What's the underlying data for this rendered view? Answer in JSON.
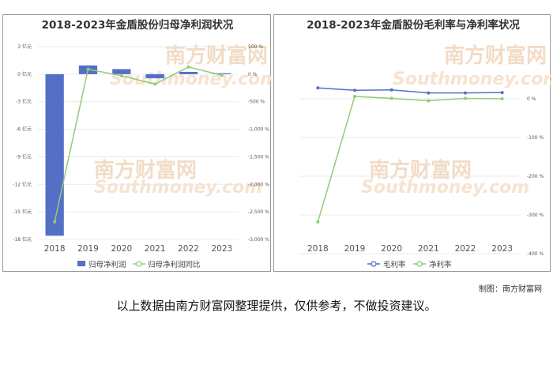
{
  "watermark": {
    "cn": "南方财富网",
    "en": "Southmoney.com"
  },
  "credit": "制图：南方财富网",
  "disclaimer": "以上数据由南方财富网整理提供，仅供参考，不做投资建议。",
  "chart_data": [
    {
      "type": "bar+line",
      "title": "2018-2023年金盾股份归母净利润状况",
      "categories": [
        "2018",
        "2019",
        "2020",
        "2021",
        "2022",
        "2023"
      ],
      "left_axis": {
        "unit": "亿元",
        "ylim": [
          -18,
          3
        ],
        "ticks": [
          "3 亿元",
          "0 亿元",
          "-3 亿元",
          "-6 亿元",
          "-9 亿元",
          "-12 亿元",
          "-15 亿元",
          "-18 亿元"
        ],
        "tick_values": [
          3,
          0,
          -3,
          -6,
          -9,
          -12,
          -15,
          -18
        ]
      },
      "right_axis": {
        "unit": "%",
        "ylim": [
          -3000,
          500
        ],
        "ticks": [
          "500 %",
          "0 %",
          "-500 %",
          "-1,000 %",
          "-1,500 %",
          "-2,000 %",
          "-2,500 %",
          "-3,000 %"
        ],
        "tick_values": [
          500,
          0,
          -500,
          -1000,
          -1500,
          -2000,
          -2500,
          -3000
        ]
      },
      "series": [
        {
          "name": "归母净利润",
          "kind": "bar",
          "axis": "left",
          "color": "#5470c6",
          "values": [
            -17.6,
            0.95,
            0.55,
            -0.45,
            0.25,
            0.1
          ]
        },
        {
          "name": "归母净利润同比",
          "kind": "line",
          "axis": "right",
          "color": "#91cc75",
          "values": [
            -2680,
            90,
            -30,
            -180,
            130,
            -20
          ]
        }
      ],
      "legend": "bottom-center"
    },
    {
      "type": "line",
      "title": "2018-2023年金盾股份毛利率与净利率状况",
      "categories": [
        "2018",
        "2019",
        "2020",
        "2021",
        "2022",
        "2023"
      ],
      "right_axis": {
        "unit": "%",
        "ylim": [
          -400,
          30
        ],
        "ticks": [
          "0 %",
          "-100 %",
          "-200 %",
          "-300 %",
          "-400 %"
        ],
        "tick_values": [
          0,
          -100,
          -200,
          -300,
          -400
        ]
      },
      "series": [
        {
          "name": "毛利率",
          "color": "#5470c6",
          "values": [
            28,
            22,
            23,
            15,
            15,
            16
          ]
        },
        {
          "name": "净利率",
          "color": "#91cc75",
          "values": [
            -318,
            6,
            1,
            -5,
            1,
            0
          ]
        }
      ],
      "legend": "bottom-center"
    }
  ]
}
